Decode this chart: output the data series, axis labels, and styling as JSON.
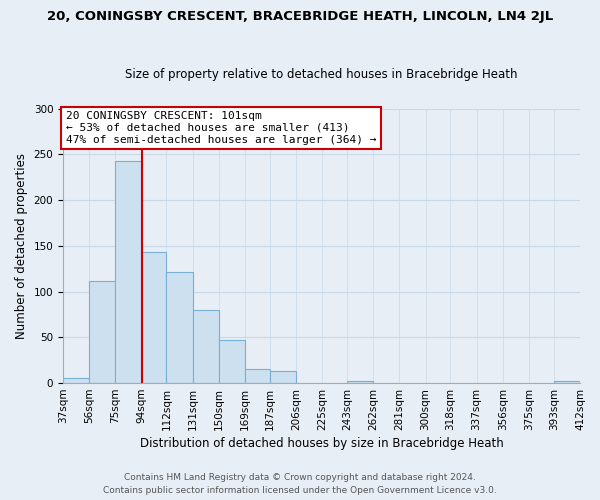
{
  "title": "20, CONINGSBY CRESCENT, BRACEBRIDGE HEATH, LINCOLN, LN4 2JL",
  "subtitle": "Size of property relative to detached houses in Bracebridge Heath",
  "xlabel": "Distribution of detached houses by size in Bracebridge Heath",
  "ylabel": "Number of detached properties",
  "bar_color": "#cde0f0",
  "bar_edge_color": "#7aafd4",
  "bin_edges": [
    37,
    56,
    75,
    94,
    112,
    131,
    150,
    169,
    187,
    206,
    225,
    243,
    262,
    281,
    300,
    318,
    337,
    356,
    375,
    393,
    412
  ],
  "bin_labels": [
    "37sqm",
    "56sqm",
    "75sqm",
    "94sqm",
    "112sqm",
    "131sqm",
    "150sqm",
    "169sqm",
    "187sqm",
    "206sqm",
    "225sqm",
    "243sqm",
    "262sqm",
    "281sqm",
    "300sqm",
    "318sqm",
    "337sqm",
    "356sqm",
    "375sqm",
    "393sqm",
    "412sqm"
  ],
  "counts": [
    5,
    111,
    243,
    143,
    121,
    80,
    47,
    15,
    13,
    0,
    0,
    2,
    0,
    0,
    0,
    0,
    0,
    0,
    0,
    2
  ],
  "property_line_x": 94,
  "ylim": [
    0,
    300
  ],
  "yticks": [
    0,
    50,
    100,
    150,
    200,
    250,
    300
  ],
  "annotation_line1": "20 CONINGSBY CRESCENT: 101sqm",
  "annotation_line2": "← 53% of detached houses are smaller (413)",
  "annotation_line3": "47% of semi-detached houses are larger (364) →",
  "annotation_box_color": "white",
  "annotation_border_color": "#cc0000",
  "red_line_color": "#cc0000",
  "footer_line1": "Contains HM Land Registry data © Crown copyright and database right 2024.",
  "footer_line2": "Contains public sector information licensed under the Open Government Licence v3.0.",
  "background_color": "#e8eef5",
  "grid_color": "#c8d8e8",
  "title_fontsize": 9.5,
  "subtitle_fontsize": 8.5,
  "ylabel_fontsize": 8.5,
  "xlabel_fontsize": 8.5,
  "tick_fontsize": 7.5,
  "annotation_fontsize": 8.0,
  "footer_fontsize": 6.5
}
